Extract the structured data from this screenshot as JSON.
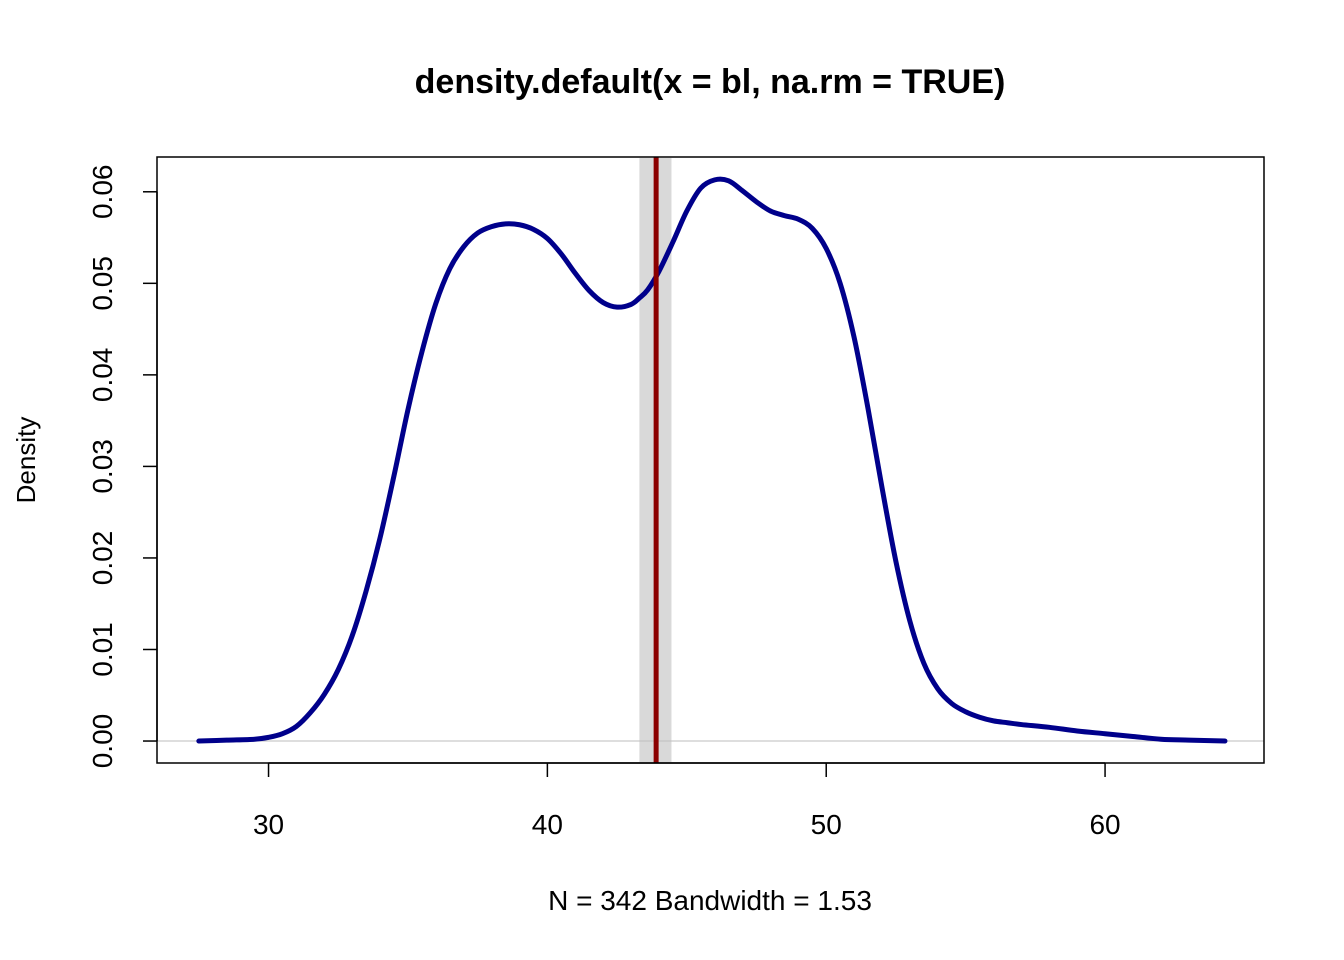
{
  "chart_data": {
    "type": "line",
    "title": "density.default(x = bl, na.rm = TRUE)",
    "xlabel": "N = 342   Bandwidth = 1.53",
    "ylabel": "Density",
    "xlim": [
      26,
      65.7
    ],
    "ylim": [
      -0.0024,
      0.0638
    ],
    "x_ticks": [
      30,
      40,
      50,
      60
    ],
    "x_tick_labels": [
      "30",
      "40",
      "50",
      "60"
    ],
    "y_ticks": [
      0.0,
      0.01,
      0.02,
      0.03,
      0.04,
      0.05,
      0.06
    ],
    "y_tick_labels": [
      "0.00",
      "0.01",
      "0.02",
      "0.03",
      "0.04",
      "0.05",
      "0.06"
    ],
    "series": [
      {
        "color": "#00008B",
        "x": [
          27.5,
          28.5,
          29.5,
          30.0,
          30.5,
          31.0,
          31.5,
          32.0,
          32.5,
          33.0,
          33.5,
          34.0,
          34.5,
          35.0,
          35.5,
          36.0,
          36.5,
          37.0,
          37.5,
          38.0,
          38.5,
          39.0,
          39.5,
          40.0,
          40.5,
          41.0,
          41.5,
          42.0,
          42.5,
          43.0,
          43.3,
          43.6,
          44.0,
          44.5,
          45.0,
          45.5,
          46.0,
          46.5,
          47.0,
          47.5,
          48.0,
          48.5,
          49.0,
          49.5,
          50.0,
          50.5,
          51.0,
          51.5,
          52.0,
          52.5,
          53.0,
          53.5,
          54.0,
          54.5,
          55.0,
          55.5,
          56.0,
          56.5,
          57.0,
          58.0,
          59.0,
          60.0,
          61.0,
          62.0,
          63.0,
          64.3
        ],
        "y": [
          0.0,
          0.0001,
          0.0002,
          0.0004,
          0.0008,
          0.0016,
          0.0031,
          0.0051,
          0.0078,
          0.0115,
          0.0164,
          0.0222,
          0.029,
          0.0362,
          0.0425,
          0.0478,
          0.0516,
          0.054,
          0.0555,
          0.0562,
          0.0565,
          0.0564,
          0.0559,
          0.0549,
          0.0532,
          0.0511,
          0.0492,
          0.0479,
          0.0474,
          0.0477,
          0.0484,
          0.0493,
          0.0513,
          0.0545,
          0.0579,
          0.0604,
          0.0613,
          0.0612,
          0.0601,
          0.0589,
          0.0579,
          0.0574,
          0.057,
          0.056,
          0.0538,
          0.05,
          0.0441,
          0.0363,
          0.0277,
          0.0196,
          0.0131,
          0.0085,
          0.0057,
          0.0041,
          0.0032,
          0.0026,
          0.0022,
          0.002,
          0.0018,
          0.0015,
          0.0011,
          0.0008,
          0.0005,
          0.0002,
          0.0001,
          0.0
        ]
      }
    ],
    "vline": {
      "x": 43.9,
      "color": "#8B0000"
    },
    "vband": {
      "x_min": 43.3,
      "x_max": 44.45,
      "color": "#D9D9D9"
    },
    "baseline_color": "#BEBEBE",
    "grid": false,
    "legend": false
  }
}
